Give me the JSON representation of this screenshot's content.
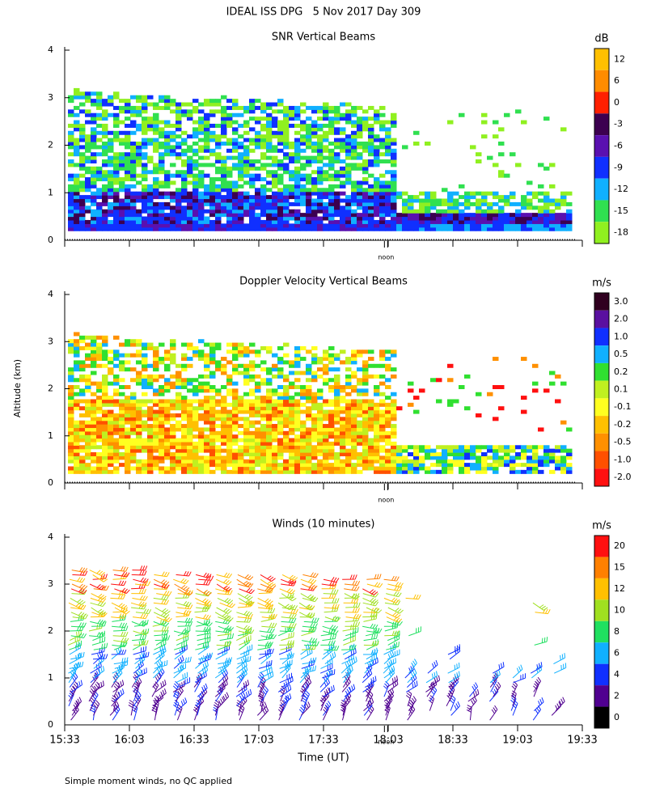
{
  "title": "IDEAL ISS DPG   5 Nov 2017 Day 309",
  "y_label": "Altitude (km)",
  "x_label": "Time (UT)",
  "footnote": "Simple moment winds, no QC applied",
  "chart_data": [
    {
      "type": "heatmap",
      "field": "snr",
      "title": "SNR Vertical Beams",
      "ylim": [
        0,
        4
      ],
      "yticks": [
        0,
        1,
        2,
        3,
        4
      ],
      "xlim": [
        933,
        1173
      ],
      "annotation": {
        "text": "noon",
        "x": 1082
      },
      "colorbar": {
        "label": "dB",
        "ticks": [
          12,
          6,
          0,
          -3,
          -6,
          -9,
          -12,
          -15,
          -18
        ],
        "colors": [
          "#ffc000",
          "#ff8c00",
          "#ff2000",
          "#3c0050",
          "#5a10b0",
          "#1030ff",
          "#10b0ff",
          "#30e050",
          "#90f020"
        ]
      }
    },
    {
      "type": "heatmap",
      "field": "doppler",
      "title": "Doppler Velocity Vertical Beams",
      "ylim": [
        0,
        4
      ],
      "yticks": [
        0,
        1,
        2,
        3,
        4
      ],
      "xlim": [
        933,
        1173
      ],
      "annotation": {
        "text": "noon",
        "x": 1082
      },
      "colorbar": {
        "label": "m/s",
        "ticks": [
          {
            "value": 3,
            "label": "3.0"
          },
          {
            "value": 2,
            "label": "2.0"
          },
          {
            "value": 1,
            "label": "1.0"
          },
          0.5,
          0.2,
          0.1,
          -0.1,
          -0.2,
          -0.5,
          {
            "value": -1,
            "label": "-1.0"
          },
          {
            "value": -2,
            "label": "-2.0"
          }
        ],
        "colors": [
          "#300020",
          "#5a10a0",
          "#1030ff",
          "#10b0ff",
          "#30e030",
          "#c0f020",
          "#ffff20",
          "#ffc000",
          "#ff9000",
          "#ff5000",
          "#ff1010"
        ]
      }
    },
    {
      "type": "barbs",
      "title": "Winds (10 minutes)",
      "ylim": [
        0,
        4
      ],
      "yticks": [
        0,
        1,
        2,
        3,
        4
      ],
      "xlim": [
        933,
        1173
      ],
      "xticks": [
        {
          "value": 933,
          "label": "15:33"
        },
        {
          "value": 963,
          "label": "16:03"
        },
        {
          "value": 993,
          "label": "16:33"
        },
        {
          "value": 1023,
          "label": "17:03"
        },
        {
          "value": 1053,
          "label": "17:33"
        },
        {
          "value": 1083,
          "label": "18:03"
        },
        {
          "value": 1113,
          "label": "18:33"
        },
        {
          "value": 1143,
          "label": "19:03"
        },
        {
          "value": 1173,
          "label": "19:33"
        }
      ],
      "annotation": {
        "text": "noon",
        "x": 1082
      },
      "colorbar": {
        "label": "m/s",
        "ticks": [
          20,
          15,
          12,
          10,
          8,
          6,
          4,
          2,
          0
        ],
        "colors": [
          "#ff1010",
          "#ff8000",
          "#ffc000",
          "#a0e020",
          "#20e060",
          "#10b0ff",
          "#1030ff",
          "#500090",
          "#000000"
        ]
      }
    }
  ]
}
